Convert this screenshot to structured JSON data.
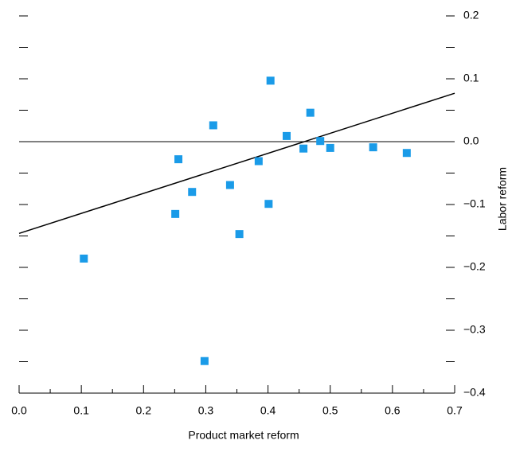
{
  "chart_data": {
    "type": "scatter",
    "x_label": "Product market reform",
    "y_label": "Labor reform",
    "x": [
      0.104,
      0.251,
      0.256,
      0.278,
      0.298,
      0.312,
      0.339,
      0.354,
      0.385,
      0.401,
      0.404,
      0.43,
      0.457,
      0.468,
      0.484,
      0.5,
      0.569,
      0.623
    ],
    "values": [
      -0.186,
      -0.115,
      -0.028,
      -0.08,
      -0.349,
      0.026,
      -0.069,
      -0.147,
      -0.031,
      -0.099,
      0.097,
      0.009,
      -0.011,
      0.046,
      0.001,
      -0.01,
      -0.009,
      -0.018
    ],
    "color": "#1a9be8",
    "trendline": {
      "x": [
        0,
        0.7
      ],
      "y": [
        -0.146,
        0.077
      ]
    },
    "xlim": [
      0,
      0.7
    ],
    "ylim": [
      -0.4,
      0.2
    ],
    "xticks": [
      {
        "value": 0,
        "label": "0.0"
      },
      0.1,
      0.2,
      0.3,
      0.4,
      0.5,
      0.6,
      0.7
    ],
    "yticks": [
      0.2,
      0.1,
      {
        "value": 0,
        "label": "0.0"
      },
      {
        "value": -0.1,
        "label": "−0.1"
      },
      {
        "value": -0.2,
        "label": "−0.2"
      },
      {
        "value": -0.3,
        "label": "−0.3"
      },
      {
        "value": -0.4,
        "label": "−0.4"
      }
    ],
    "xminorticks": [
      0.05,
      0.15,
      0.25,
      0.35,
      0.45,
      0.55,
      0.65
    ],
    "yminorticks": [
      0.15,
      0.05,
      -0.05,
      -0.15,
      -0.25,
      -0.35
    ],
    "zero_line": true
  }
}
